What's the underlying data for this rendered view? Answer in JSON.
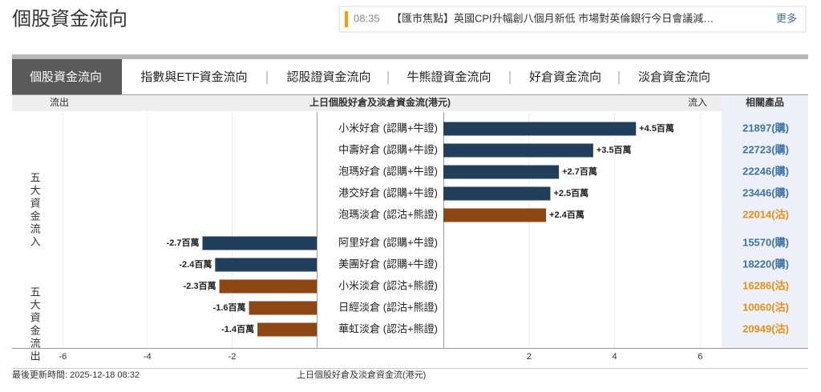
{
  "header": {
    "title": "個股資金流向",
    "news_time": "08:35",
    "news_text": "【匯市焦點】英國CPI升幅創八個月新低 市場對英倫銀行今日會議減…",
    "more": "更多"
  },
  "tabs": [
    "個股資金流向",
    "指數與ETF資金流向",
    "認股證資金流向",
    "牛熊證資金流向",
    "好倉資金流向",
    "淡倉資金流向"
  ],
  "chart_data": {
    "type": "diverging_bar",
    "title": "上日個股好倉及淡倉資金流(港元)",
    "outflow_label": "流出",
    "inflow_label": "流入",
    "products_header": "相關產品",
    "groups": [
      "五大資金流入",
      "五大資金流出"
    ],
    "categories": [
      "小米好倉 (認購+牛證)",
      "中壽好倉 (認購+牛證)",
      "泡瑪好倉 (認購+牛證)",
      "港交好倉 (認購+牛證)",
      "泡瑪淡倉 (認沽+熊證)",
      "阿里好倉 (認購+牛證)",
      "美團好倉 (認購+牛證)",
      "小米淡倉 (認沽+熊證)",
      "日經淡倉 (認沽+熊證)",
      "華虹淡倉 (認沽+熊證)"
    ],
    "values": [
      4.5,
      3.5,
      2.7,
      2.5,
      2.4,
      -2.7,
      -2.4,
      -2.3,
      -1.6,
      -1.4
    ],
    "value_labels": [
      "+4.5百萬",
      "+3.5百萬",
      "+2.7百萬",
      "+2.5百萬",
      "+2.4百萬",
      "-2.7百萬",
      "-2.4百萬",
      "-2.3百萬",
      "-1.6百萬",
      "-1.4百萬"
    ],
    "colors": [
      "#213f5b",
      "#213f5b",
      "#213f5b",
      "#213f5b",
      "#8c4712",
      "#213f5b",
      "#213f5b",
      "#8c4712",
      "#8c4712",
      "#8c4712"
    ],
    "products": [
      "21897(購)",
      "22723(購)",
      "22246(購)",
      "23446(購)",
      "22014(沽)",
      "15570(購)",
      "18220(購)",
      "16286(沽)",
      "10060(沽)",
      "20949(沽)"
    ],
    "product_colors": [
      "#3f73a8",
      "#3f73a8",
      "#3f73a8",
      "#3f73a8",
      "#e5901a",
      "#3f73a8",
      "#3f73a8",
      "#e5901a",
      "#e5901a",
      "#e5901a"
    ],
    "left_xlim": [
      -7.2,
      0
    ],
    "right_xlim": [
      0,
      6.5
    ],
    "left_xticks": [
      -6,
      -4,
      -2
    ],
    "right_xticks": [
      2,
      4,
      6
    ],
    "grid": true
  },
  "footer": {
    "updated": "最後更新時間: 2025-12-18 08:32",
    "caption": "上日個股好倉及淡倉資金流(港元)"
  }
}
